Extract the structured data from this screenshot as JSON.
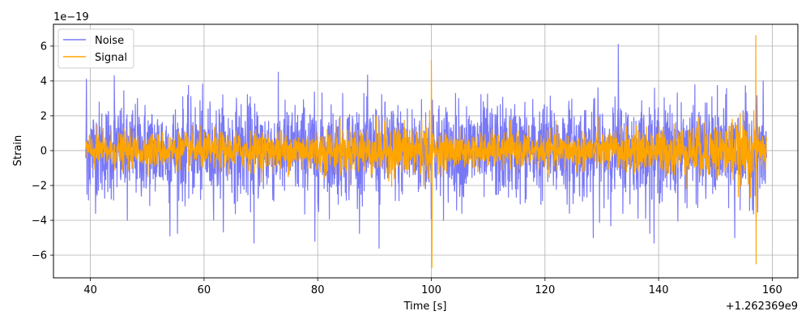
{
  "chart_data": {
    "type": "line",
    "title": "",
    "xlabel": "Time [s]",
    "ylabel": "Strain",
    "x_offset_label": "+1.262369e9",
    "y_scale_label": "1e−19",
    "xlim": [
      33.5,
      164.5
    ],
    "ylim": [
      -7.3,
      7.25
    ],
    "x_ticks": [
      40,
      60,
      80,
      100,
      120,
      140,
      160
    ],
    "x_tick_labels": [
      "40",
      "60",
      "80",
      "100",
      "120",
      "140",
      "160"
    ],
    "y_ticks": [
      -6,
      -4,
      -2,
      0,
      2,
      4,
      6
    ],
    "y_tick_labels": [
      "−6",
      "−4",
      "−2",
      "0",
      "2",
      "4",
      "6"
    ],
    "grid": true,
    "legend_position": "top-left",
    "x_range_data": [
      39.2,
      159.0
    ],
    "series": [
      {
        "name": "Noise",
        "color": "#7878f7",
        "typical_amplitude": 2.5,
        "peaks": [
          {
            "x": 39.3,
            "y": 4.1
          },
          {
            "x": 39.4,
            "y": -2.5
          },
          {
            "x": 44.2,
            "y": 4.3
          },
          {
            "x": 46.5,
            "y": -4.0
          },
          {
            "x": 54.0,
            "y": -4.9
          },
          {
            "x": 68.8,
            "y": -5.3
          },
          {
            "x": 79.5,
            "y": -5.2
          },
          {
            "x": 90.8,
            "y": -5.6
          },
          {
            "x": 100.2,
            "y": 2.9
          },
          {
            "x": 100.0,
            "y": -3.2
          },
          {
            "x": 128.5,
            "y": -5.0
          },
          {
            "x": 132.9,
            "y": 6.1
          },
          {
            "x": 139.2,
            "y": -5.3
          },
          {
            "x": 153.4,
            "y": -5.0
          },
          {
            "x": 157.2,
            "y": 2.6
          }
        ]
      },
      {
        "name": "Signal",
        "color": "#ffa500",
        "typical_amplitude": 1.0,
        "peaks": [
          {
            "x": 100.0,
            "y": 5.2
          },
          {
            "x": 100.1,
            "y": -6.7
          },
          {
            "x": 157.1,
            "y": 6.6
          },
          {
            "x": 157.15,
            "y": -6.5
          }
        ]
      }
    ]
  }
}
